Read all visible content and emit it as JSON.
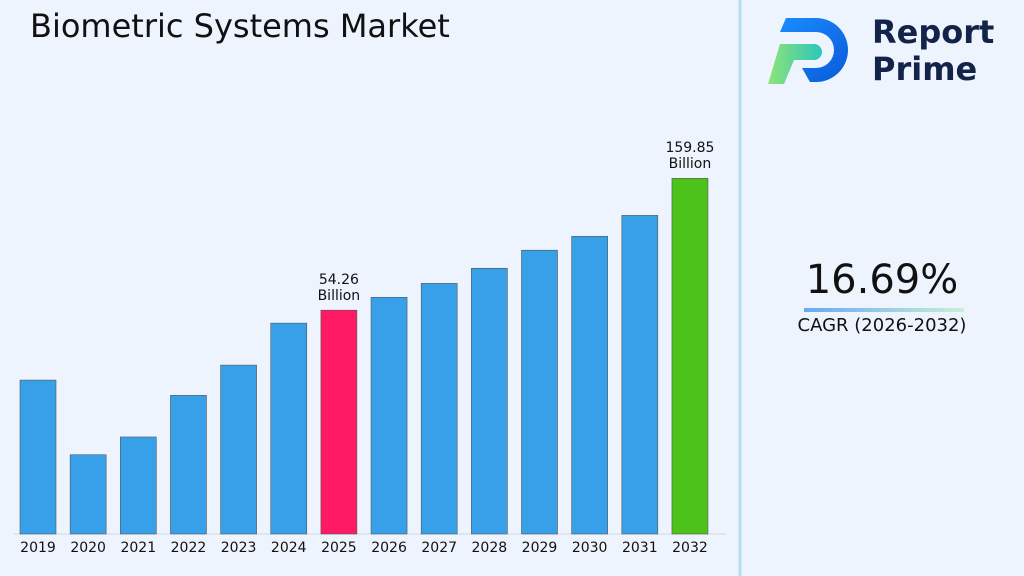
{
  "chart_data": {
    "type": "bar",
    "title": "Biometric Systems Market",
    "categories": [
      "2019",
      "2020",
      "2021",
      "2022",
      "2023",
      "2024",
      "2025",
      "2026",
      "2027",
      "2028",
      "2029",
      "2030",
      "2031",
      "2032"
    ],
    "values": [
      30.6,
      16.6,
      19.2,
      27.0,
      34.6,
      48.8,
      54.26,
      60.3,
      67.6,
      76.5,
      88.7,
      99.4,
      118,
      159.85
    ],
    "value_labels": [
      null,
      null,
      null,
      null,
      null,
      null,
      "54.26 Billion",
      null,
      null,
      null,
      null,
      null,
      null,
      "159.85 Billion"
    ],
    "colors": [
      "#38a0e8",
      "#38a0e8",
      "#38a0e8",
      "#38a0e8",
      "#38a0e8",
      "#38a0e8",
      "#ff1a66",
      "#38a0e8",
      "#38a0e8",
      "#38a0e8",
      "#38a0e8",
      "#38a0e8",
      "#38a0e8",
      "#4cc21a"
    ],
    "ylim": [
      8.67,
      200
    ],
    "log": true
  },
  "logo": {
    "line1": "Report",
    "line2": "Prime"
  },
  "cagr": {
    "value": "16.69%",
    "label": "CAGR (2026-2032)"
  }
}
